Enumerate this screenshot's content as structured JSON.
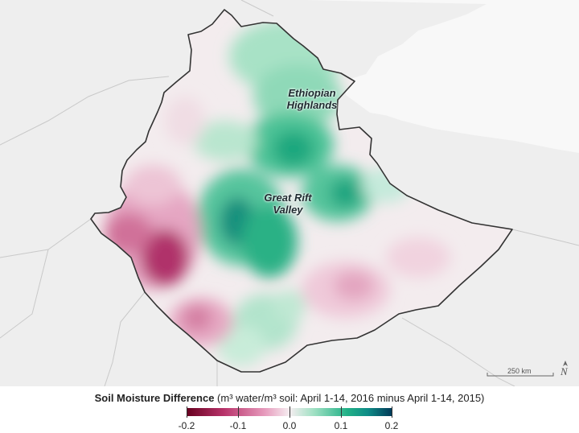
{
  "map": {
    "labels": {
      "highlands_line1": "Ethiopian",
      "highlands_line2": "Highlands",
      "rift_line1": "Great Rift",
      "rift_line2": "Valley"
    },
    "scale_bar": "250 km",
    "north_symbol": "N"
  },
  "legend": {
    "title_bold": "Soil Moisture Difference",
    "title_rest": " (m³ water/m³ soil: April 1-14, 2016 minus April 1-14, 2015)",
    "ticks": [
      "-0.2",
      "-0.1",
      "0.0",
      "0.1",
      "0.2"
    ],
    "range": [
      -0.2,
      0.2
    ],
    "colors": {
      "dry_extreme": "#67001f",
      "dry": "#e79bbd",
      "neutral": "#f6eef1",
      "wet": "#22b187",
      "wet_extreme": "#023858"
    }
  }
}
